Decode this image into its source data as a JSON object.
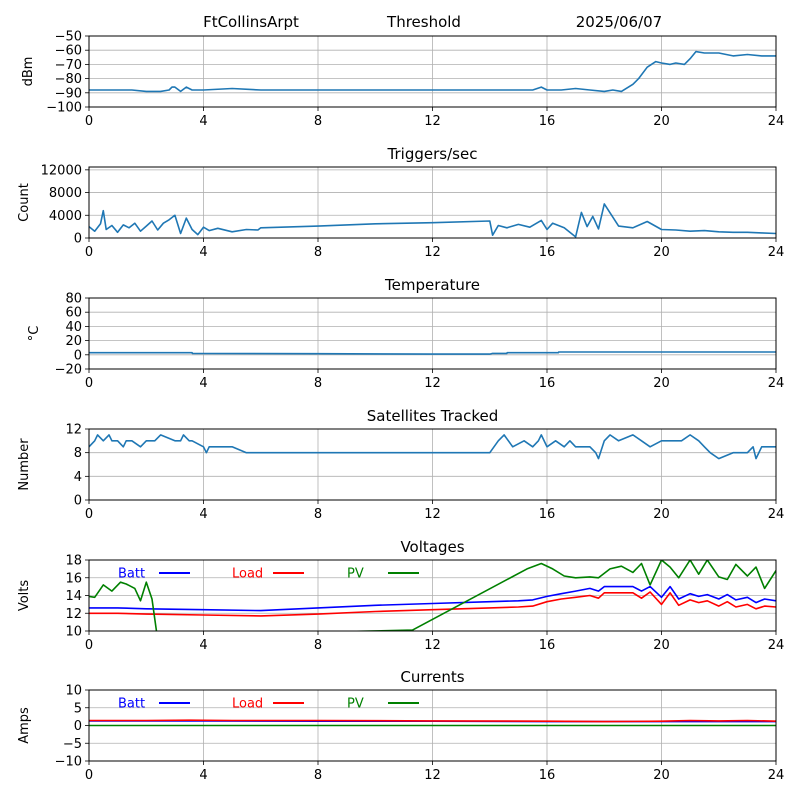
{
  "header": {
    "station": "FtCollinsArpt",
    "mode": "Threshold",
    "date": "2025/06/07"
  },
  "colors": {
    "series_default": "#1f77b4",
    "batt": "#0000ff",
    "load": "#ff0000",
    "pv": "#008000",
    "grid": "#b0b0b0"
  },
  "chart_data": [
    {
      "id": "signal",
      "type": "line",
      "title": "",
      "xlabel": "",
      "ylabel": "dBm",
      "xlim": [
        0,
        24
      ],
      "ylim": [
        -100,
        -50
      ],
      "xticks": [
        0,
        4,
        8,
        12,
        16,
        20,
        24
      ],
      "yticks": [
        -100,
        -90,
        -80,
        -70,
        -60,
        -50
      ],
      "ytick_labels": [
        "−100",
        "−90",
        "−80",
        "−70",
        "−60",
        "−50"
      ],
      "grid": true,
      "series": [
        {
          "color_key": "series_default",
          "x": [
            0,
            0.5,
            1,
            1.5,
            2,
            2.5,
            2.8,
            2.9,
            3.0,
            3.2,
            3.4,
            3.6,
            4,
            5,
            6,
            8,
            10,
            12,
            14,
            15,
            15.5,
            15.8,
            16,
            16.5,
            17,
            17.5,
            18,
            18.3,
            18.6,
            19,
            19.2,
            19.5,
            19.8,
            20,
            20.3,
            20.5,
            20.8,
            21,
            21.2,
            21.5,
            22,
            22.5,
            23,
            23.5,
            24
          ],
          "y": [
            -88,
            -88,
            -88,
            -88,
            -89,
            -89,
            -88,
            -86,
            -86,
            -89,
            -86,
            -88,
            -88,
            -87,
            -88,
            -88,
            -88,
            -88,
            -88,
            -88,
            -88,
            -86,
            -88,
            -88,
            -87,
            -88,
            -89,
            -88,
            -89,
            -84,
            -80,
            -72,
            -68,
            -69,
            -70,
            -69,
            -70,
            -66,
            -61,
            -62,
            -62,
            -64,
            -63,
            -64,
            -64
          ]
        }
      ]
    },
    {
      "id": "triggers",
      "type": "line",
      "title": "Triggers/sec",
      "xlabel": "",
      "ylabel": "Count",
      "xlim": [
        0,
        24
      ],
      "ylim": [
        0,
        12500
      ],
      "xticks": [
        0,
        4,
        8,
        12,
        16,
        20,
        24
      ],
      "yticks": [
        0,
        4000,
        8000,
        12000
      ],
      "ytick_labels": [
        "0",
        "4000",
        "8000",
        "12000"
      ],
      "grid": true,
      "series": [
        {
          "color_key": "series_default",
          "x": [
            0,
            0.2,
            0.4,
            0.5,
            0.6,
            0.8,
            1.0,
            1.2,
            1.4,
            1.6,
            1.8,
            2.0,
            2.2,
            2.4,
            2.6,
            2.8,
            3.0,
            3.2,
            3.4,
            3.6,
            3.8,
            4.0,
            4.2,
            4.5,
            5.0,
            5.5,
            5.9,
            6.0,
            8,
            10,
            12,
            14.0,
            14.1,
            14.3,
            14.6,
            15.0,
            15.4,
            15.8,
            16.0,
            16.2,
            16.6,
            17.0,
            17.2,
            17.4,
            17.6,
            17.8,
            18.0,
            18.5,
            19.0,
            19.5,
            20.0,
            20.5,
            21.0,
            21.5,
            22.0,
            22.5,
            23.0,
            23.5,
            24
          ],
          "y": [
            2000,
            1200,
            2500,
            4800,
            1500,
            2200,
            1000,
            2300,
            1800,
            2600,
            1200,
            2100,
            3000,
            1400,
            2600,
            3200,
            4000,
            800,
            3500,
            1500,
            600,
            1900,
            1300,
            1700,
            1100,
            1500,
            1400,
            1800,
            2100,
            2500,
            2700,
            3000,
            500,
            2200,
            1800,
            2400,
            1900,
            3100,
            1500,
            2600,
            1800,
            200,
            4500,
            2000,
            3800,
            1600,
            6000,
            2100,
            1800,
            2900,
            1500,
            1400,
            1200,
            1300,
            1100,
            1000,
            1000,
            900,
            800
          ]
        }
      ]
    },
    {
      "id": "temperature",
      "type": "line",
      "title": "Temperature",
      "xlabel": "",
      "ylabel": "°C",
      "xlim": [
        0,
        24
      ],
      "ylim": [
        -20,
        80
      ],
      "xticks": [
        0,
        4,
        8,
        12,
        16,
        20,
        24
      ],
      "yticks": [
        -20,
        0,
        20,
        40,
        60,
        80
      ],
      "ytick_labels": [
        "−20",
        "0",
        "20",
        "40",
        "60",
        "80"
      ],
      "grid": true,
      "series": [
        {
          "color_key": "series_default",
          "x": [
            0,
            3.6,
            3.61,
            8,
            12,
            14,
            14.1,
            14.6,
            14.61,
            16.4,
            16.41,
            24
          ],
          "y": [
            3,
            3,
            2,
            1.5,
            1,
            1,
            2,
            2,
            3,
            3,
            4,
            4
          ]
        }
      ]
    },
    {
      "id": "satellites",
      "type": "line",
      "title": "Satellites Tracked",
      "xlabel": "",
      "ylabel": "Number",
      "xlim": [
        0,
        24
      ],
      "ylim": [
        0,
        12
      ],
      "xticks": [
        0,
        4,
        8,
        12,
        16,
        20,
        24
      ],
      "yticks": [
        0,
        4,
        8,
        12
      ],
      "ytick_labels": [
        "0",
        "4",
        "8",
        "12"
      ],
      "grid": true,
      "series": [
        {
          "color_key": "series_default",
          "x": [
            0,
            0.2,
            0.3,
            0.5,
            0.7,
            0.8,
            1.0,
            1.2,
            1.3,
            1.5,
            1.8,
            2.0,
            2.3,
            2.5,
            3.0,
            3.2,
            3.3,
            3.5,
            3.6,
            4.0,
            4.1,
            4.2,
            4.5,
            5.0,
            5.5,
            5.6,
            13,
            14.0,
            14.3,
            14.5,
            14.8,
            15.2,
            15.5,
            15.7,
            15.8,
            16.0,
            16.3,
            16.6,
            16.8,
            17.0,
            17.5,
            17.7,
            17.8,
            18.0,
            18.2,
            18.5,
            19.0,
            19.3,
            19.6,
            20.0,
            20.3,
            20.7,
            21.0,
            21.3,
            21.5,
            21.7,
            22.0,
            22.5,
            23.0,
            23.2,
            23.3,
            23.5,
            24
          ],
          "y": [
            9,
            10,
            11,
            10,
            11,
            10,
            10,
            9,
            10,
            10,
            9,
            10,
            10,
            11,
            10,
            10,
            11,
            10,
            10,
            9,
            8,
            9,
            9,
            9,
            8,
            8,
            8,
            8,
            10,
            11,
            9,
            10,
            9,
            10,
            11,
            9,
            10,
            9,
            10,
            9,
            9,
            8,
            7,
            10,
            11,
            10,
            11,
            10,
            9,
            10,
            10,
            10,
            11,
            10,
            9,
            8,
            7,
            8,
            8,
            9,
            7,
            9,
            9
          ]
        }
      ]
    },
    {
      "id": "voltages",
      "type": "line",
      "title": "Voltages",
      "xlabel": "",
      "ylabel": "Volts",
      "xlim": [
        0,
        24
      ],
      "ylim": [
        10,
        18
      ],
      "xticks": [
        0,
        4,
        8,
        12,
        16,
        20,
        24
      ],
      "yticks": [
        10,
        12,
        14,
        16,
        18
      ],
      "ytick_labels": [
        "10",
        "12",
        "14",
        "16",
        "18"
      ],
      "grid": true,
      "legend": [
        "Batt",
        "Load",
        "PV"
      ],
      "series": [
        {
          "name": "Batt",
          "color_key": "batt",
          "x": [
            0,
            1,
            2,
            4,
            6,
            8,
            10,
            12,
            14,
            15,
            15.5,
            16,
            16.5,
            17,
            17.5,
            17.8,
            18,
            19,
            19.3,
            19.6,
            20,
            20.3,
            20.6,
            21,
            21.3,
            21.6,
            22,
            22.3,
            22.6,
            23,
            23.3,
            23.6,
            24
          ],
          "y": [
            12.6,
            12.6,
            12.5,
            12.4,
            12.3,
            12.6,
            12.9,
            13.1,
            13.3,
            13.4,
            13.5,
            13.9,
            14.2,
            14.5,
            14.8,
            14.5,
            15.0,
            15.0,
            14.5,
            15.0,
            13.8,
            15.0,
            13.6,
            14.2,
            13.9,
            14.1,
            13.6,
            14.1,
            13.5,
            13.8,
            13.2,
            13.6,
            13.4
          ]
        },
        {
          "name": "Load",
          "color_key": "load",
          "x": [
            0,
            1,
            2,
            4,
            6,
            8,
            10,
            12,
            14,
            15,
            15.5,
            16,
            16.5,
            17,
            17.5,
            17.8,
            18,
            19,
            19.3,
            19.6,
            20,
            20.3,
            20.6,
            21,
            21.3,
            21.6,
            22,
            22.3,
            22.6,
            23,
            23.3,
            23.6,
            24
          ],
          "y": [
            12.0,
            12.0,
            11.9,
            11.8,
            11.7,
            11.9,
            12.2,
            12.4,
            12.6,
            12.7,
            12.8,
            13.3,
            13.6,
            13.8,
            14.0,
            13.7,
            14.3,
            14.3,
            13.7,
            14.4,
            13.0,
            14.3,
            12.9,
            13.5,
            13.2,
            13.4,
            12.8,
            13.3,
            12.7,
            13.0,
            12.5,
            12.8,
            12.7
          ]
        },
        {
          "name": "PV",
          "color_key": "pv",
          "x": [
            0,
            0.2,
            0.5,
            0.8,
            1.1,
            1.3,
            1.6,
            1.8,
            2.0,
            2.2,
            2.4,
            2.5,
            11.3,
            15.3,
            15.8,
            16.2,
            16.6,
            17.0,
            17.5,
            17.8,
            18.2,
            18.6,
            19.0,
            19.3,
            19.6,
            20.0,
            20.3,
            20.6,
            21.0,
            21.3,
            21.6,
            22.0,
            22.3,
            22.6,
            23.0,
            23.3,
            23.6,
            24
          ],
          "y": [
            13.9,
            13.8,
            15.2,
            14.5,
            15.5,
            15.3,
            14.8,
            13.4,
            15.5,
            13.6,
            9.0,
            9.5,
            10.1,
            17.0,
            17.6,
            17.0,
            16.2,
            16.0,
            16.1,
            16.0,
            17.0,
            17.3,
            16.6,
            17.6,
            15.2,
            18.0,
            17.2,
            16.0,
            18.0,
            16.4,
            18.0,
            16.1,
            15.8,
            17.5,
            16.2,
            17.2,
            14.8,
            16.8
          ]
        }
      ]
    },
    {
      "id": "currents",
      "type": "line",
      "title": "Currents",
      "xlabel": "",
      "ylabel": "Amps",
      "xlim": [
        0,
        24
      ],
      "ylim": [
        -10,
        10
      ],
      "xticks": [
        0,
        4,
        8,
        12,
        16,
        20,
        24
      ],
      "yticks": [
        -10,
        -5,
        0,
        5,
        10
      ],
      "ytick_labels": [
        "−10",
        "−5",
        "0",
        "5",
        "10"
      ],
      "grid": true,
      "legend": [
        "Batt",
        "Load",
        "PV"
      ],
      "series": [
        {
          "name": "Batt",
          "color_key": "batt",
          "x": [
            0,
            4,
            8,
            12,
            16,
            20,
            24
          ],
          "y": [
            1.3,
            1.3,
            1.2,
            1.2,
            1.1,
            1.1,
            1.1
          ]
        },
        {
          "name": "Load",
          "color_key": "load",
          "x": [
            0,
            2,
            3.5,
            5,
            8,
            12,
            16,
            18,
            20,
            21,
            22,
            23,
            24
          ],
          "y": [
            1.4,
            1.4,
            1.5,
            1.4,
            1.4,
            1.3,
            1.2,
            1.1,
            1.2,
            1.4,
            1.3,
            1.4,
            1.2
          ]
        },
        {
          "name": "PV",
          "color_key": "pv",
          "x": [
            0,
            24
          ],
          "y": [
            0,
            0
          ]
        }
      ]
    }
  ]
}
